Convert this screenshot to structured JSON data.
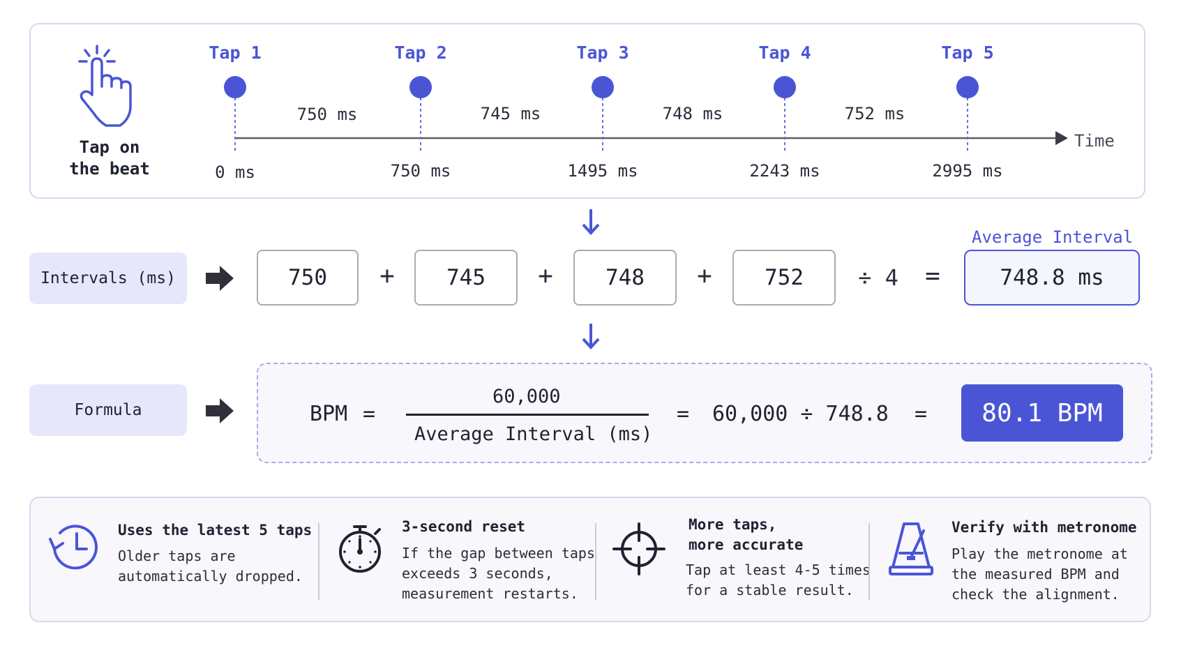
{
  "hand": {
    "label": "Tap on\nthe beat"
  },
  "taps": [
    {
      "title": "Tap 1",
      "time": "0 ms"
    },
    {
      "title": "Tap 2",
      "time": "750 ms"
    },
    {
      "title": "Tap 3",
      "time": "1495 ms"
    },
    {
      "title": "Tap 4",
      "time": "2243 ms"
    },
    {
      "title": "Tap 5",
      "time": "2995 ms"
    }
  ],
  "intervals": [
    "750 ms",
    "745 ms",
    "748 ms",
    "752 ms"
  ],
  "axis_label": "Time",
  "intervals_row": {
    "label": "Intervals (ms)",
    "values": [
      "750",
      "745",
      "748",
      "752"
    ],
    "plus": "+",
    "divide": "÷ 4",
    "equals": "=",
    "average_title": "Average Interval",
    "average_value": "748.8 ms"
  },
  "formula_row": {
    "label": "Formula",
    "bpm_label": "BPM",
    "equals": "=",
    "numerator": "60,000",
    "denominator": "Average Interval (ms)",
    "calculation": "60,000 ÷ 748.8",
    "result": "80.1 BPM"
  },
  "tips": [
    {
      "icon": "history-clock-icon",
      "title": "Uses the latest 5 taps",
      "body": "Older taps are\nautomatically dropped."
    },
    {
      "icon": "stopwatch-icon",
      "title": "3-second reset",
      "body": "If the gap between taps\nexceeds 3 seconds,\nmeasurement restarts."
    },
    {
      "icon": "crosshair-icon",
      "title": "More taps,\nmore accurate",
      "body": "Tap at least 4-5 times\nfor a stable result."
    },
    {
      "icon": "metronome-icon",
      "title": "Verify with metronome",
      "body": "Play the metronome at\nthe measured BPM and\ncheck the alignment."
    }
  ],
  "colors": {
    "accent": "#4a55d6",
    "chip_bg": "#e6e7fa",
    "text": "#1f2230"
  }
}
